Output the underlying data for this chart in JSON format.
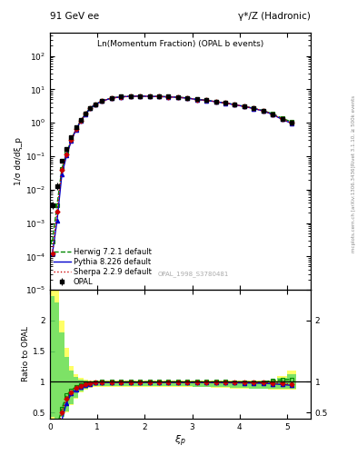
{
  "title_left": "91 GeV ee",
  "title_right": "γ*/Z (Hadronic)",
  "plot_title": "Ln(Momentum Fraction) (OPAL b events)",
  "ylabel_main": "1/σ dσ/dξ_p",
  "ylabel_ratio": "Ratio to OPAL",
  "watermark": "OPAL_1998_S3780481",
  "right_label": "Rivet 3.1.10, ≥ 500k events",
  "right_label2": "mcplots.cern.ch [arXiv:1306.3436]",
  "legend": [
    "OPAL",
    "Herwig 7.2.1 default",
    "Pythia 8.226 default",
    "Sherpa 2.2.9 default"
  ],
  "xip_data": [
    0.05,
    0.15,
    0.25,
    0.35,
    0.45,
    0.55,
    0.65,
    0.75,
    0.85,
    0.95,
    1.1,
    1.3,
    1.5,
    1.7,
    1.9,
    2.1,
    2.3,
    2.5,
    2.7,
    2.9,
    3.1,
    3.3,
    3.5,
    3.7,
    3.9,
    4.1,
    4.3,
    4.5,
    4.7,
    4.9,
    5.1
  ],
  "opal_y": [
    0.0035,
    0.013,
    0.075,
    0.16,
    0.36,
    0.72,
    1.22,
    1.92,
    2.82,
    3.52,
    4.52,
    5.52,
    6.02,
    6.22,
    6.32,
    6.22,
    6.12,
    6.02,
    5.82,
    5.52,
    5.02,
    4.72,
    4.32,
    3.92,
    3.52,
    3.12,
    2.72,
    2.32,
    1.82,
    1.32,
    1.02
  ],
  "opal_yerr": [
    0.0008,
    0.003,
    0.008,
    0.015,
    0.025,
    0.04,
    0.06,
    0.09,
    0.12,
    0.15,
    0.15,
    0.15,
    0.15,
    0.15,
    0.15,
    0.15,
    0.15,
    0.15,
    0.15,
    0.15,
    0.15,
    0.15,
    0.12,
    0.12,
    0.12,
    0.12,
    0.12,
    0.12,
    0.12,
    0.12,
    0.12
  ],
  "herwig_y": [
    0.00028,
    0.0035,
    0.042,
    0.125,
    0.31,
    0.66,
    1.16,
    1.86,
    2.76,
    3.51,
    4.51,
    5.51,
    6.01,
    6.21,
    6.31,
    6.21,
    6.11,
    6.01,
    5.81,
    5.51,
    5.01,
    4.71,
    4.31,
    3.91,
    3.51,
    3.11,
    2.71,
    2.31,
    1.86,
    1.36,
    1.06
  ],
  "pythia_y": [
    0.00012,
    0.0012,
    0.028,
    0.105,
    0.29,
    0.63,
    1.11,
    1.81,
    2.71,
    3.46,
    4.46,
    5.46,
    5.96,
    6.16,
    6.26,
    6.16,
    6.06,
    5.96,
    5.76,
    5.46,
    4.96,
    4.66,
    4.26,
    3.86,
    3.46,
    3.06,
    2.66,
    2.26,
    1.76,
    1.26,
    0.96
  ],
  "sherpa_y": [
    0.00012,
    0.0022,
    0.038,
    0.115,
    0.3,
    0.65,
    1.13,
    1.83,
    2.73,
    3.48,
    4.48,
    5.48,
    5.98,
    6.18,
    6.28,
    6.18,
    6.08,
    5.98,
    5.78,
    5.48,
    4.98,
    4.68,
    4.28,
    3.88,
    3.48,
    3.08,
    2.68,
    2.28,
    1.78,
    1.28,
    0.98
  ],
  "ylim_main": [
    1e-05,
    500
  ],
  "ylim_ratio": [
    0.4,
    2.5
  ],
  "xmin": 0.0,
  "xmax": 5.5,
  "color_opal": "#000000",
  "color_herwig": "#008800",
  "color_pythia": "#0000cc",
  "color_sherpa": "#cc0000",
  "color_band_yellow": "#ffff66",
  "color_band_green": "#66dd66",
  "yellow_lo": [
    0.4,
    0.4,
    0.42,
    0.5,
    0.62,
    0.72,
    0.82,
    0.87,
    0.9,
    0.92,
    0.92,
    0.92,
    0.92,
    0.92,
    0.92,
    0.92,
    0.92,
    0.92,
    0.92,
    0.92,
    0.91,
    0.91,
    0.9,
    0.9,
    0.89,
    0.89,
    0.88,
    0.88,
    0.87,
    0.87,
    0.87
  ],
  "yellow_hi": [
    2.6,
    2.5,
    2.0,
    1.55,
    1.25,
    1.12,
    1.06,
    1.03,
    1.02,
    1.015,
    1.015,
    1.015,
    1.015,
    1.015,
    1.015,
    1.015,
    1.015,
    1.015,
    1.015,
    1.015,
    1.015,
    1.015,
    1.015,
    1.015,
    1.015,
    1.015,
    1.015,
    1.015,
    1.02,
    1.1,
    1.18
  ],
  "green_lo": [
    0.42,
    0.38,
    0.43,
    0.52,
    0.64,
    0.74,
    0.84,
    0.89,
    0.91,
    0.93,
    0.93,
    0.93,
    0.93,
    0.93,
    0.93,
    0.93,
    0.93,
    0.93,
    0.93,
    0.93,
    0.92,
    0.92,
    0.91,
    0.91,
    0.9,
    0.9,
    0.89,
    0.89,
    0.88,
    0.88,
    0.89
  ],
  "green_hi": [
    2.4,
    2.3,
    1.8,
    1.4,
    1.18,
    1.08,
    1.04,
    1.02,
    1.01,
    1.008,
    1.008,
    1.008,
    1.008,
    1.008,
    1.008,
    1.008,
    1.008,
    1.008,
    1.008,
    1.008,
    1.008,
    1.008,
    1.008,
    1.008,
    1.008,
    1.008,
    1.008,
    1.008,
    1.01,
    1.06,
    1.12
  ],
  "xedges": [
    0.0,
    0.1,
    0.2,
    0.3,
    0.4,
    0.5,
    0.6,
    0.7,
    0.8,
    0.9,
    1.0,
    1.2,
    1.4,
    1.6,
    1.8,
    2.0,
    2.2,
    2.4,
    2.6,
    2.8,
    3.0,
    3.2,
    3.4,
    3.6,
    3.8,
    4.0,
    4.2,
    4.4,
    4.6,
    4.8,
    5.0,
    5.2
  ]
}
